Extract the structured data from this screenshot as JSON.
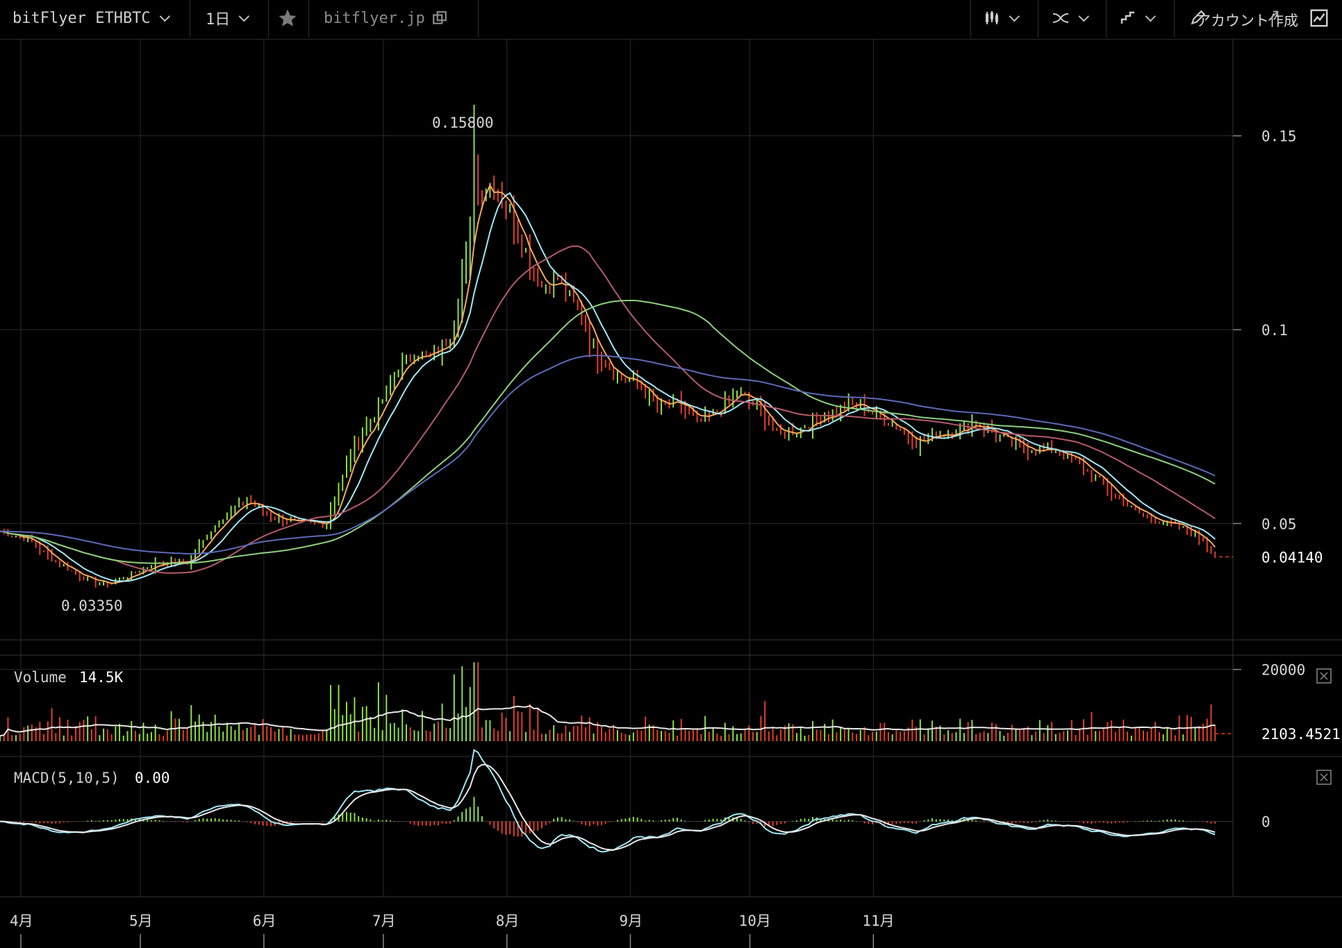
{
  "toolbar": {
    "symbol": "bitFlyer ETHBTC",
    "interval": "1日",
    "favorite_icon": "star-icon",
    "link": "bitflyer.jp",
    "link_icon": "external-link-icon",
    "chart_type_icon": "candlestick-icon",
    "indicator_icon": "indicator-icon",
    "compare_icon": "compare-icon",
    "draw_icon": "pencil-icon",
    "account": "アカウント作成",
    "expand_icon": "expand-icon",
    "snapshot_icon": "snapshot-icon"
  },
  "colors": {
    "background": "#000000",
    "grid": "#2a2a2a",
    "up": "#8ee04a",
    "down": "#e0402a",
    "ma_orange": "#f6a95c",
    "ma_cyan": "#9fe8f6",
    "ma_red": "#b85a6a",
    "ma_green": "#8cd27c",
    "ma_blue": "#5c6ab8",
    "volume_ma": "#e8e8e8",
    "macd_line": "#9fe8f6",
    "signal_line": "#e8e8e8"
  },
  "chart_data": [
    {
      "type": "candlestick",
      "name": "ETHBTC",
      "x_labels": [
        "4月",
        "5月",
        "6月",
        "7月",
        "8月",
        "9月",
        "10月",
        "11月"
      ],
      "y_ticks": [
        "0.15",
        "0.1",
        "0.05"
      ],
      "y_tick_values": [
        0.15,
        0.1,
        0.05
      ],
      "ylim": [
        0.02,
        0.175
      ],
      "high_label": "0.15800",
      "low_label": "0.03350",
      "last_price_label": "0.04140",
      "high_value": 0.158,
      "low_value": 0.0335,
      "last_price": 0.0414,
      "close_points": [
        [
          0,
          0.048
        ],
        [
          7,
          0.046
        ],
        [
          14,
          0.04
        ],
        [
          21,
          0.036
        ],
        [
          27,
          0.034
        ],
        [
          33,
          0.037
        ],
        [
          40,
          0.04
        ],
        [
          47,
          0.04
        ],
        [
          55,
          0.051
        ],
        [
          62,
          0.056
        ],
        [
          68,
          0.052
        ],
        [
          75,
          0.05
        ],
        [
          82,
          0.05
        ],
        [
          88,
          0.068
        ],
        [
          94,
          0.078
        ],
        [
          100,
          0.09
        ],
        [
          104,
          0.094
        ],
        [
          108,
          0.093
        ],
        [
          113,
          0.098
        ],
        [
          117,
          0.118
        ],
        [
          120,
          0.135
        ],
        [
          124,
          0.138
        ],
        [
          128,
          0.13
        ],
        [
          132,
          0.12
        ],
        [
          136,
          0.111
        ],
        [
          140,
          0.113
        ],
        [
          145,
          0.105
        ],
        [
          150,
          0.094
        ],
        [
          155,
          0.088
        ],
        [
          160,
          0.086
        ],
        [
          165,
          0.08
        ],
        [
          170,
          0.081
        ],
        [
          175,
          0.076
        ],
        [
          180,
          0.079
        ],
        [
          185,
          0.084
        ],
        [
          190,
          0.08
        ],
        [
          195,
          0.073
        ],
        [
          200,
          0.074
        ],
        [
          205,
          0.077
        ],
        [
          210,
          0.079
        ],
        [
          215,
          0.081
        ],
        [
          220,
          0.078
        ],
        [
          225,
          0.075
        ],
        [
          230,
          0.071
        ],
        [
          235,
          0.073
        ],
        [
          240,
          0.074
        ],
        [
          245,
          0.076
        ],
        [
          250,
          0.073
        ],
        [
          255,
          0.07
        ],
        [
          260,
          0.069
        ],
        [
          265,
          0.069
        ],
        [
          270,
          0.066
        ],
        [
          275,
          0.062
        ],
        [
          280,
          0.057
        ],
        [
          285,
          0.053
        ],
        [
          290,
          0.051
        ],
        [
          296,
          0.049
        ],
        [
          302,
          0.046
        ],
        [
          305,
          0.0414
        ]
      ]
    },
    {
      "type": "bar",
      "name": "Volume",
      "label": "Volume",
      "value_label": "14.5K",
      "y_ticks": [
        "20000"
      ],
      "y_tick_values": [
        20000
      ],
      "last_label": "2103.4521",
      "last_value": 2103.4521,
      "ylim": [
        0,
        24000
      ]
    },
    {
      "type": "line",
      "name": "MACD",
      "label": "MACD(5,10,5)",
      "value_label": "0.00",
      "y_ticks": [
        "0"
      ],
      "y_tick_values": [
        0
      ],
      "ylim": [
        -0.011,
        0.0095
      ]
    }
  ]
}
